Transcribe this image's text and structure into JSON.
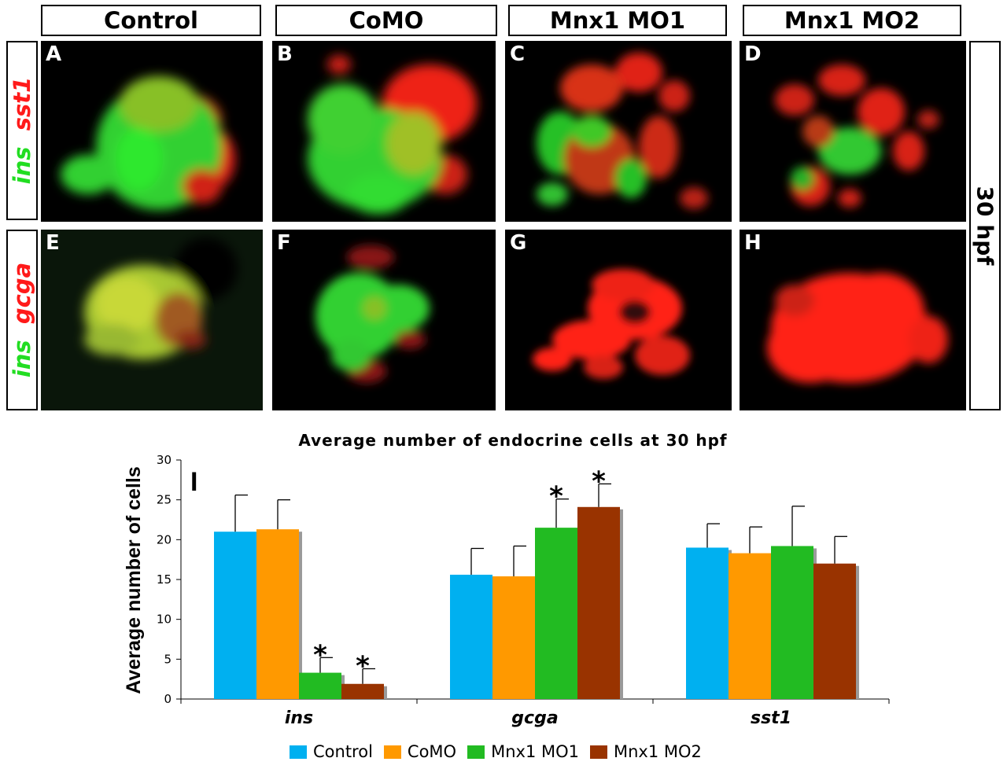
{
  "columns": [
    "Control",
    "CoMO",
    "Mnx1 MO1",
    "Mnx1 MO2"
  ],
  "rows": [
    {
      "green": "ins",
      "red": "sst1"
    },
    {
      "green": "ins",
      "red": "gcga"
    }
  ],
  "side_label": "30 hpf",
  "panel_letters": [
    "A",
    "B",
    "C",
    "D",
    "E",
    "F",
    "G",
    "H"
  ],
  "colors": {
    "green": "#22dd22",
    "red": "#ff1a1a",
    "control": "#00b0f0",
    "como": "#ff9900",
    "mo1": "#22bb22",
    "mo2": "#993300"
  },
  "chart_data": {
    "type": "bar",
    "title": "Average number of endocrine cells at 30 hpf",
    "panel_label": "I",
    "ylabel": "Average number of cells",
    "xlabel": "",
    "ylim": [
      0,
      30
    ],
    "yticks": [
      0,
      5,
      10,
      15,
      20,
      25,
      30
    ],
    "categories": [
      "ins",
      "gcga",
      "sst1"
    ],
    "series": [
      {
        "name": "Control",
        "color": "#00b0f0",
        "values": [
          21.0,
          15.6,
          19.0
        ],
        "errors": [
          4.6,
          3.3,
          3.0
        ]
      },
      {
        "name": "CoMO",
        "color": "#ff9900",
        "values": [
          21.3,
          15.4,
          18.3
        ],
        "errors": [
          3.7,
          3.8,
          3.3
        ]
      },
      {
        "name": "Mnx1 MO1",
        "color": "#22bb22",
        "values": [
          3.3,
          21.5,
          19.2
        ],
        "errors": [
          1.9,
          3.6,
          5.0
        ]
      },
      {
        "name": "Mnx1 MO2",
        "color": "#993300",
        "values": [
          1.9,
          24.1,
          17.0
        ],
        "errors": [
          1.9,
          2.9,
          3.4
        ]
      }
    ],
    "significant": [
      [
        false,
        false,
        true,
        true
      ],
      [
        false,
        false,
        true,
        true
      ],
      [
        false,
        false,
        false,
        false
      ]
    ],
    "significance_mark": "*",
    "legend_position": "bottom",
    "grid": false
  }
}
